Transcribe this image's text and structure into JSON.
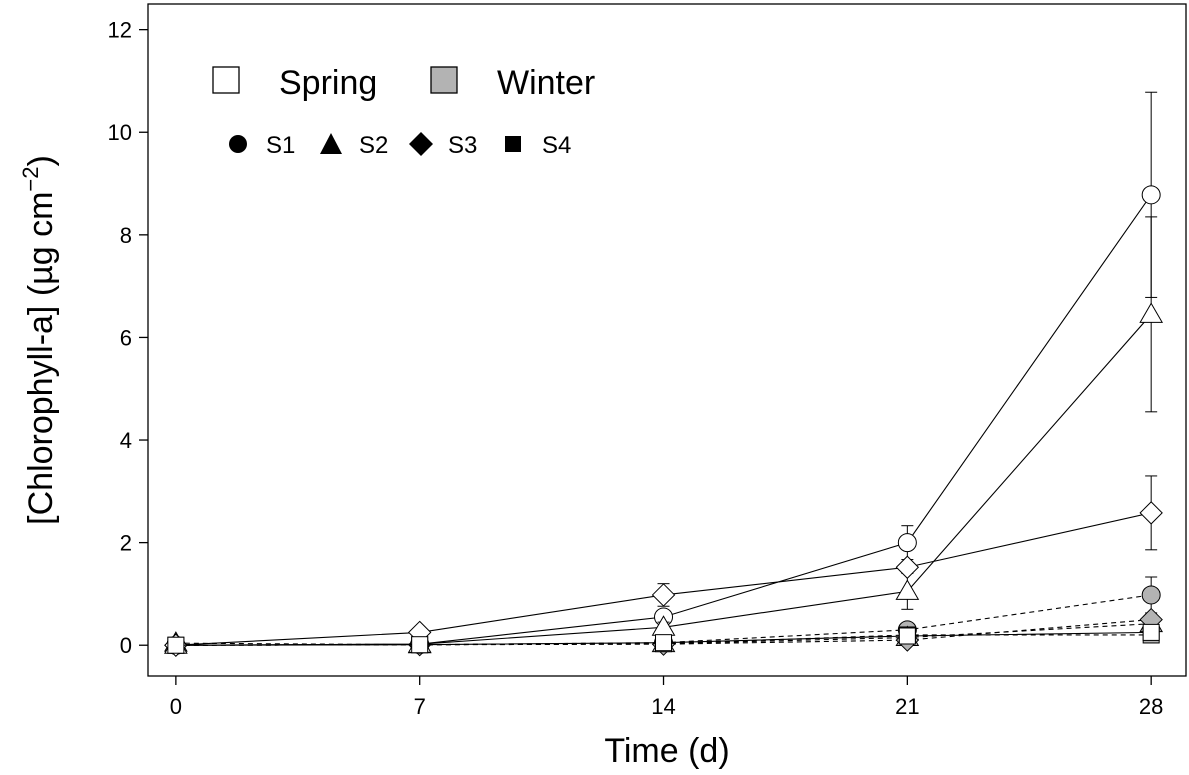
{
  "chart_data": {
    "type": "line",
    "xlabel": "Time (d)",
    "ylabel_main": "[Chlorophyll-a] (µg cm",
    "ylabel_sup": "−2",
    "ylabel_close": ")",
    "x": [
      0,
      7,
      14,
      21,
      28
    ],
    "xticks": [
      "0",
      "7",
      "14",
      "21",
      "28"
    ],
    "xlim": [
      -0.8,
      29
    ],
    "ylim": [
      -0.6,
      12.5
    ],
    "yticks": [
      "0",
      "2",
      "4",
      "6",
      "8",
      "10",
      "12"
    ],
    "legend": {
      "seasons": [
        {
          "label": "Spring",
          "fill": "#ffffff"
        },
        {
          "label": "Winter",
          "fill": "#b3b3b3"
        }
      ],
      "sites": [
        {
          "label": "S1",
          "marker": "circle"
        },
        {
          "label": "S2",
          "marker": "triangle"
        },
        {
          "label": "S3",
          "marker": "diamond"
        },
        {
          "label": "S4",
          "marker": "square"
        }
      ]
    },
    "series": [
      {
        "season": "Spring",
        "site": "S1",
        "marker": "circle",
        "fill": "#ffffff",
        "dash": "solid",
        "values": [
          0,
          0.02,
          0.55,
          2.0,
          8.78
        ],
        "err": [
          0,
          0,
          0.12,
          0.33,
          2.0
        ]
      },
      {
        "season": "Spring",
        "site": "S2",
        "marker": "triangle",
        "fill": "#ffffff",
        "dash": "solid",
        "values": [
          0,
          0.02,
          0.35,
          1.05,
          6.45
        ],
        "err": [
          0,
          0,
          0.1,
          0.35,
          1.9
        ]
      },
      {
        "season": "Spring",
        "site": "S3",
        "marker": "diamond",
        "fill": "#ffffff",
        "dash": "solid",
        "values": [
          0,
          0.25,
          0.98,
          1.52,
          2.58
        ],
        "err": [
          0,
          0,
          0.22,
          0.1,
          0.72
        ]
      },
      {
        "season": "Spring",
        "site": "S4",
        "marker": "square",
        "fill": "#ffffff",
        "dash": "solid",
        "values": [
          0,
          0.01,
          0.05,
          0.18,
          0.25
        ],
        "err": [
          0,
          0,
          0,
          0,
          0
        ]
      },
      {
        "season": "Winter",
        "site": "S1",
        "marker": "circle",
        "fill": "#b3b3b3",
        "dash": "dashed",
        "values": [
          0,
          0.01,
          0.05,
          0.3,
          0.98
        ],
        "err": [
          0,
          0,
          0,
          0.05,
          0.35
        ]
      },
      {
        "season": "Winter",
        "site": "S2",
        "marker": "triangle",
        "fill": "#b3b3b3",
        "dash": "dashed",
        "values": [
          0.04,
          0.01,
          0.03,
          0.15,
          0.42
        ],
        "err": [
          0,
          0,
          0,
          0,
          0
        ]
      },
      {
        "season": "Winter",
        "site": "S3",
        "marker": "diamond",
        "fill": "#b3b3b3",
        "dash": "dashed",
        "values": [
          0,
          0.01,
          0.02,
          0.1,
          0.5
        ],
        "err": [
          0,
          0,
          0,
          0,
          0
        ]
      },
      {
        "season": "Winter",
        "site": "S4",
        "marker": "square",
        "fill": "#b3b3b3",
        "dash": "dashed",
        "values": [
          0,
          0.01,
          0.03,
          0.2,
          0.2
        ],
        "err": [
          0,
          0,
          0,
          0,
          0
        ]
      }
    ]
  }
}
